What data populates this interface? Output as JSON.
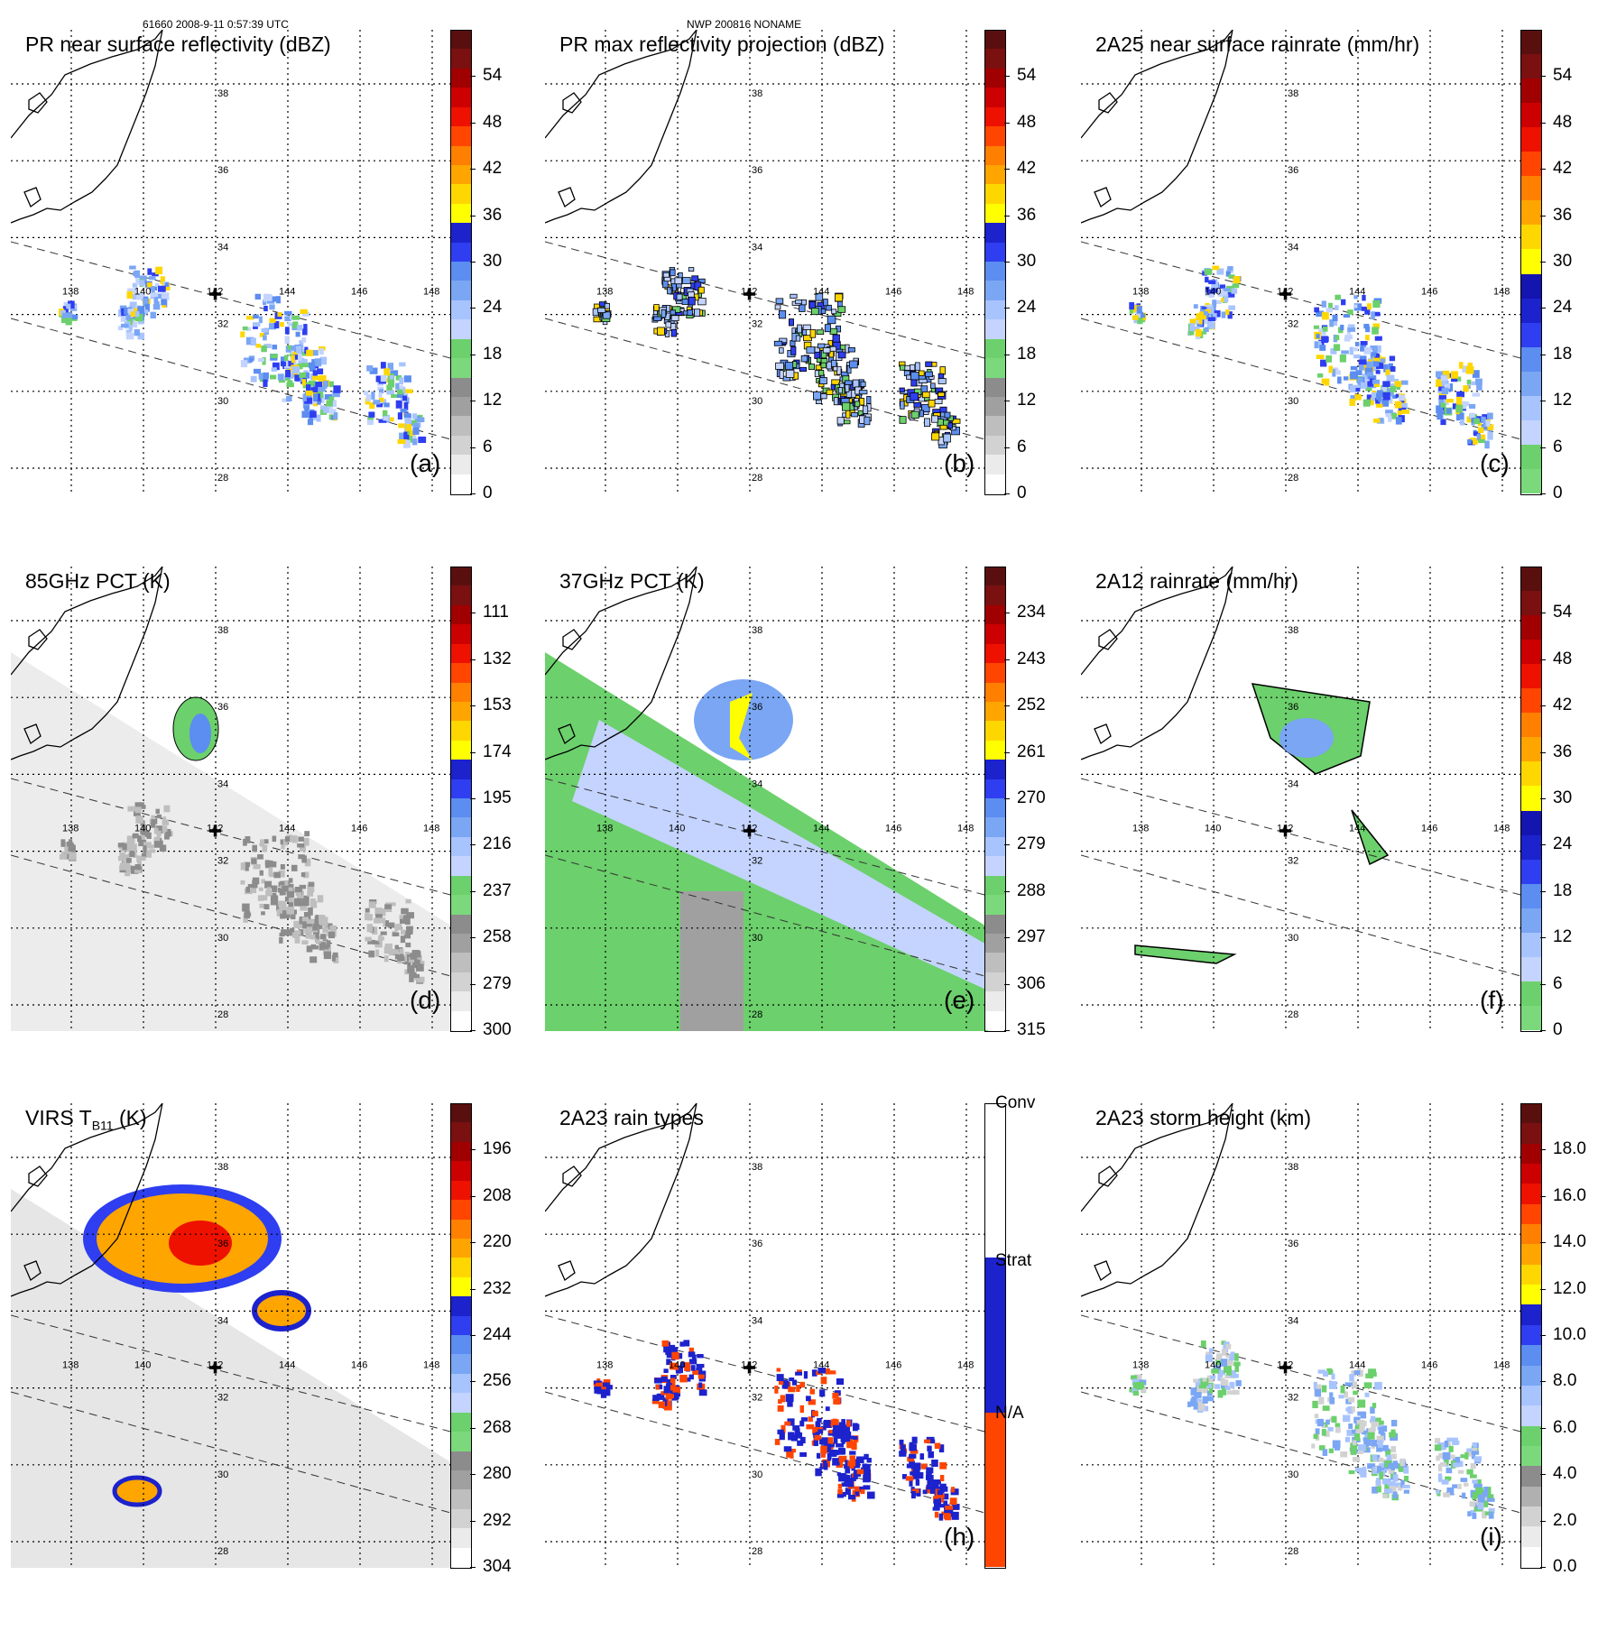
{
  "header": {
    "left": "61660 2008-9-11 0:57:39 UTC",
    "center": "NWP 200816 NONAME"
  },
  "lon_labels": [
    "138",
    "140",
    "142",
    "144",
    "146",
    "148"
  ],
  "lat_labels": [
    "38",
    "36",
    "34",
    "32",
    "30",
    "28"
  ],
  "marker_glyph": "✚",
  "panels": [
    {
      "id": "a",
      "title": "PR near surface reflectivity (dBZ)",
      "label": "(a)",
      "field": "precip",
      "scale": "refl",
      "ticks": [
        "54",
        "48",
        "42",
        "36",
        "30",
        "24",
        "18",
        "12",
        "6",
        "0"
      ]
    },
    {
      "id": "b",
      "title": "PR max reflectivity projection (dBZ)",
      "label": "(b)",
      "field": "precip",
      "scale": "refl",
      "ticks": [
        "54",
        "48",
        "42",
        "36",
        "30",
        "24",
        "18",
        "12",
        "6",
        "0"
      ]
    },
    {
      "id": "c",
      "title": "2A25 near surface rainrate (mm/hr)",
      "label": "(c)",
      "field": "precip",
      "scale": "rain",
      "ticks": [
        "54",
        "48",
        "42",
        "36",
        "30",
        "24",
        "18",
        "12",
        "6",
        "0"
      ]
    },
    {
      "id": "d",
      "title": "85GHz PCT (K)",
      "label": "(d)",
      "field": "pct85",
      "scale": "refl",
      "ticks": [
        "111",
        "132",
        "153",
        "174",
        "195",
        "216",
        "237",
        "258",
        "279",
        "300"
      ]
    },
    {
      "id": "e",
      "title": "37GHz PCT (K)",
      "label": "(e)",
      "field": "pct37",
      "scale": "refl",
      "ticks": [
        "234",
        "243",
        "252",
        "261",
        "270",
        "279",
        "288",
        "297",
        "306",
        "315"
      ]
    },
    {
      "id": "f",
      "title": "2A12 rainrate (mm/hr)",
      "label": "(f)",
      "field": "tmi",
      "scale": "rain",
      "ticks": [
        "54",
        "48",
        "42",
        "36",
        "30",
        "24",
        "18",
        "12",
        "6",
        "0"
      ]
    },
    {
      "id": "g",
      "title": "VIRS T",
      "title_sub": "B11",
      "title_suffix": " (K)",
      "label": "",
      "field": "virs",
      "scale": "refl",
      "ticks": [
        "196",
        "208",
        "220",
        "232",
        "244",
        "256",
        "268",
        "280",
        "292",
        "304"
      ]
    },
    {
      "id": "h",
      "title": "2A23 rain types",
      "label": "(h)",
      "field": "raintype",
      "scale": "types",
      "ticks": [],
      "type_labels": [
        "Conv",
        "Strat",
        "N/A"
      ]
    },
    {
      "id": "i",
      "title": "2A23 storm height (km)",
      "label": "(i)",
      "field": "height",
      "scale": "height",
      "ticks": [
        "18.0",
        "16.0",
        "14.0",
        "12.0",
        "10.0",
        "8.0",
        "6.0",
        "4.0",
        "2.0",
        "0.0"
      ]
    }
  ],
  "colors": {
    "refl": [
      "#ffffff",
      "#ebebeb",
      "#d2d2d2",
      "#bebebe",
      "#a0a0a0",
      "#8c8c8c",
      "#7bd97b",
      "#6cd06c",
      "#c4d4ff",
      "#a8c4ff",
      "#7aa6f4",
      "#5c8df0",
      "#2e3ef0",
      "#1c22cc",
      "#ffff00",
      "#ffd700",
      "#ffa500",
      "#ff7f00",
      "#ff4500",
      "#ee1100",
      "#cc0000",
      "#a00000",
      "#7a1010",
      "#5a0f0f"
    ],
    "rain": [
      "#7bd97b",
      "#6cd06c",
      "#c4d4ff",
      "#a8c4ff",
      "#7aa6f4",
      "#5c8df0",
      "#2e3ef0",
      "#1c22cc",
      "#1414b0",
      "#ffff00",
      "#ffd700",
      "#ffa500",
      "#ff7f00",
      "#ff4500",
      "#ee1100",
      "#cc0000",
      "#a00000",
      "#7a1010",
      "#5a0f0f"
    ],
    "height": [
      "#ffffff",
      "#ebebeb",
      "#d2d2d2",
      "#b0b0b0",
      "#8c8c8c",
      "#7bd97b",
      "#6cd06c",
      "#c4d4ff",
      "#a8c4ff",
      "#7aa6f4",
      "#5c8df0",
      "#2e3ef0",
      "#1c22cc",
      "#ffff00",
      "#ffd700",
      "#ffa500",
      "#ff7f00",
      "#ff4500",
      "#ee1100",
      "#cc0000",
      "#a00000",
      "#7a1010",
      "#5a0f0f"
    ],
    "types": [
      "#ff4500",
      "#1c22cc",
      "#ffffff"
    ]
  }
}
